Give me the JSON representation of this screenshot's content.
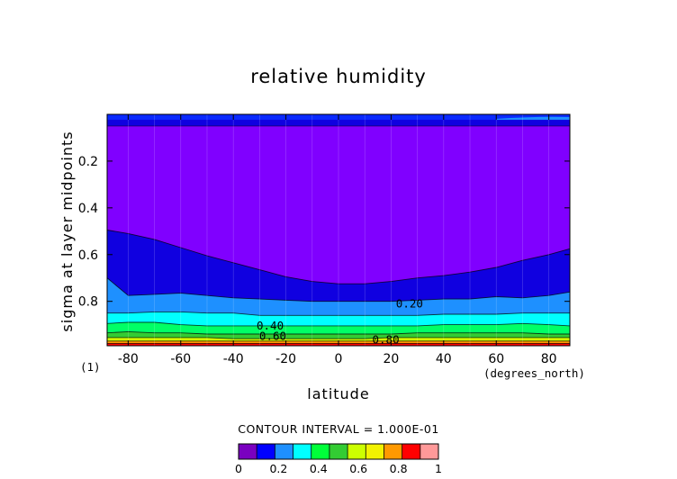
{
  "chart_data": {
    "type": "heatmap",
    "title": "relative humidity",
    "xlabel": "latitude",
    "ylabel": "sigma at layer midpoints",
    "x_units": "(degrees_north)",
    "panel_label": "(1)",
    "xlim": [
      -88,
      88
    ],
    "ylim": [
      0.99,
      0.0
    ],
    "x_ticks": [
      "-80",
      "-60",
      "-40",
      "-20",
      "0",
      "20",
      "40",
      "60",
      "80"
    ],
    "x_tick_values": [
      -80,
      -60,
      -40,
      -20,
      0,
      20,
      40,
      60,
      80
    ],
    "y_ticks": [
      "0.2",
      "0.4",
      "0.6",
      "0.8"
    ],
    "y_tick_values": [
      0.2,
      0.4,
      0.6,
      0.8
    ],
    "contour_interval_text": "CONTOUR INTERVAL = 1.000E-01",
    "contour_labels": [
      {
        "text": "0.20",
        "x": 27,
        "sigma": 0.81
      },
      {
        "text": "0.40",
        "x": -26,
        "sigma": 0.905
      },
      {
        "text": "0.60",
        "x": -25,
        "sigma": 0.95
      },
      {
        "text": "0.80",
        "x": 18,
        "sigma": 0.965
      }
    ],
    "colorbar": {
      "labels": [
        "0",
        "0.2",
        "0.4",
        "0.6",
        "0.8",
        "1"
      ],
      "colors": [
        "#7a00c0",
        "#0000ff",
        "#1e90ff",
        "#00ffff",
        "#00ff3a",
        "#33cc33",
        "#ccff00",
        "#f2f200",
        "#ff9900",
        "#ff0000",
        "#ff9999"
      ]
    },
    "band_colors": [
      "#8000ff",
      "#1000e0",
      "#1e90ff",
      "#00ffff",
      "#00ff66",
      "#33cc33",
      "#d4ff00",
      "#ff9900",
      "#ff0000"
    ],
    "x_grid": [
      -88,
      -80,
      -70,
      -60,
      -50,
      -40,
      -30,
      -20,
      -10,
      0,
      10,
      20,
      30,
      40,
      50,
      60,
      70,
      80,
      88
    ],
    "top_blue_layer_sigma": 0.05,
    "contour_boundaries": {
      "0.1": [
        0.495,
        0.51,
        0.535,
        0.57,
        0.605,
        0.635,
        0.665,
        0.695,
        0.715,
        0.725,
        0.725,
        0.715,
        0.7,
        0.69,
        0.675,
        0.655,
        0.625,
        0.6,
        0.575
      ],
      "0.2": [
        0.7,
        0.775,
        0.77,
        0.765,
        0.775,
        0.785,
        0.79,
        0.795,
        0.8,
        0.8,
        0.8,
        0.8,
        0.795,
        0.79,
        0.79,
        0.78,
        0.785,
        0.775,
        0.76
      ],
      "0.3": [
        0.85,
        0.85,
        0.845,
        0.845,
        0.85,
        0.85,
        0.86,
        0.86,
        0.86,
        0.86,
        0.86,
        0.86,
        0.86,
        0.855,
        0.855,
        0.855,
        0.85,
        0.85,
        0.85
      ],
      "0.4": [
        0.895,
        0.89,
        0.89,
        0.9,
        0.905,
        0.905,
        0.905,
        0.905,
        0.905,
        0.905,
        0.905,
        0.905,
        0.905,
        0.9,
        0.9,
        0.9,
        0.895,
        0.9,
        0.905
      ],
      "0.5": [
        0.935,
        0.93,
        0.935,
        0.935,
        0.94,
        0.94,
        0.94,
        0.94,
        0.94,
        0.94,
        0.94,
        0.94,
        0.935,
        0.935,
        0.935,
        0.935,
        0.935,
        0.94,
        0.94
      ],
      "0.6": [
        0.955,
        0.955,
        0.955,
        0.955,
        0.955,
        0.96,
        0.96,
        0.96,
        0.96,
        0.96,
        0.96,
        0.955,
        0.955,
        0.955,
        0.955,
        0.955,
        0.955,
        0.955,
        0.955
      ],
      "0.7": [
        0.97,
        0.97,
        0.97,
        0.97,
        0.97,
        0.97,
        0.97,
        0.97,
        0.97,
        0.97,
        0.97,
        0.97,
        0.97,
        0.97,
        0.97,
        0.97,
        0.97,
        0.97,
        0.97
      ],
      "0.8": [
        0.98,
        0.98,
        0.98,
        0.98,
        0.98,
        0.98,
        0.98,
        0.98,
        0.98,
        0.98,
        0.98,
        0.98,
        0.98,
        0.98,
        0.98,
        0.98,
        0.98,
        0.98,
        0.98
      ]
    }
  }
}
